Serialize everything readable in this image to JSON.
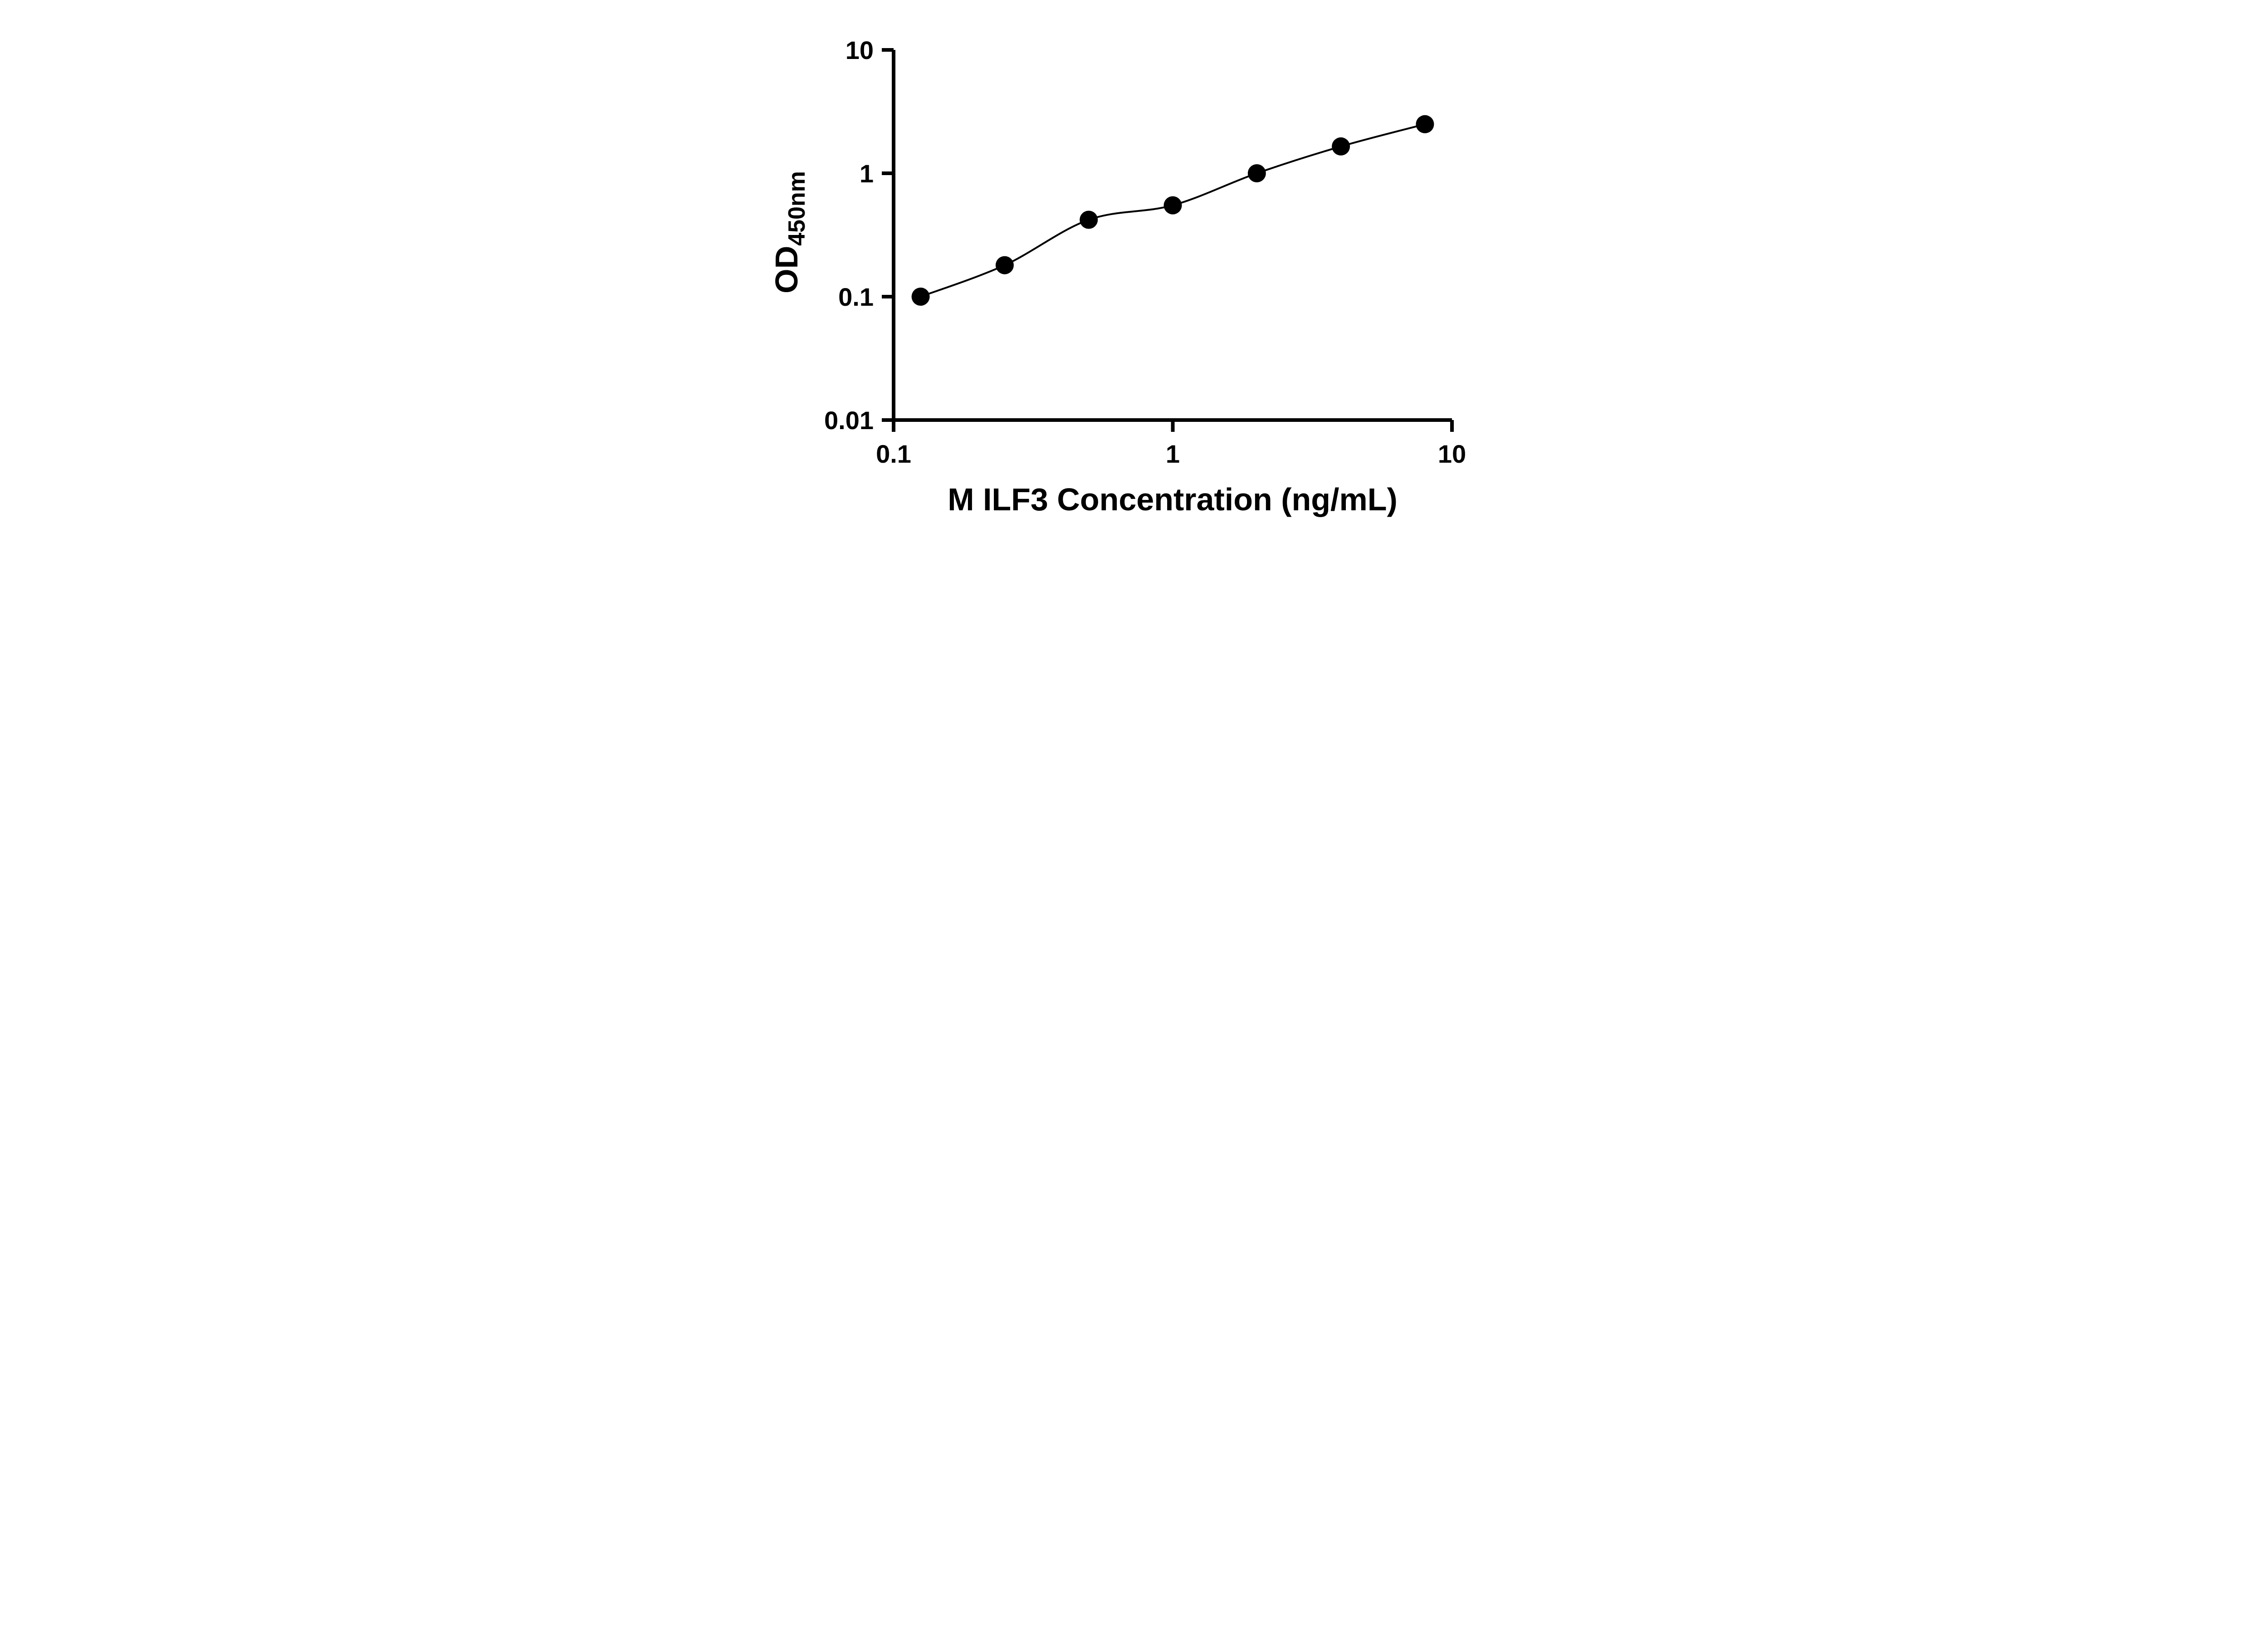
{
  "chart": {
    "x_axis_label": "M ILF3 Concentration (ng/mL)",
    "y_axis_label_main": "OD",
    "y_axis_label_sub": "450nm"
  },
  "chart_data": {
    "type": "scatter",
    "title": "",
    "xlabel": "M ILF3 Concentration (ng/mL)",
    "ylabel": "OD 450nm",
    "x_scale": "log",
    "y_scale": "log",
    "xlim": [
      0.1,
      10
    ],
    "ylim": [
      0.01,
      10
    ],
    "x": [
      0.125,
      0.25,
      0.5,
      1,
      2,
      4,
      8
    ],
    "y": [
      0.1,
      0.18,
      0.42,
      0.55,
      1.0,
      1.65,
      2.5
    ],
    "trend_line": true,
    "x_ticks": {
      "values": [
        0.1,
        1,
        10
      ],
      "labels": [
        "0.1",
        "1",
        "10"
      ]
    },
    "y_ticks": {
      "values": [
        0.01,
        0.1,
        1,
        10
      ],
      "labels": [
        "0.01",
        "0.1",
        "1",
        "10"
      ]
    },
    "legend": "none",
    "grid": false,
    "marker_color": "#000000",
    "line_color": "#000000",
    "background": "#ffffff",
    "marker_radius": 20
  }
}
